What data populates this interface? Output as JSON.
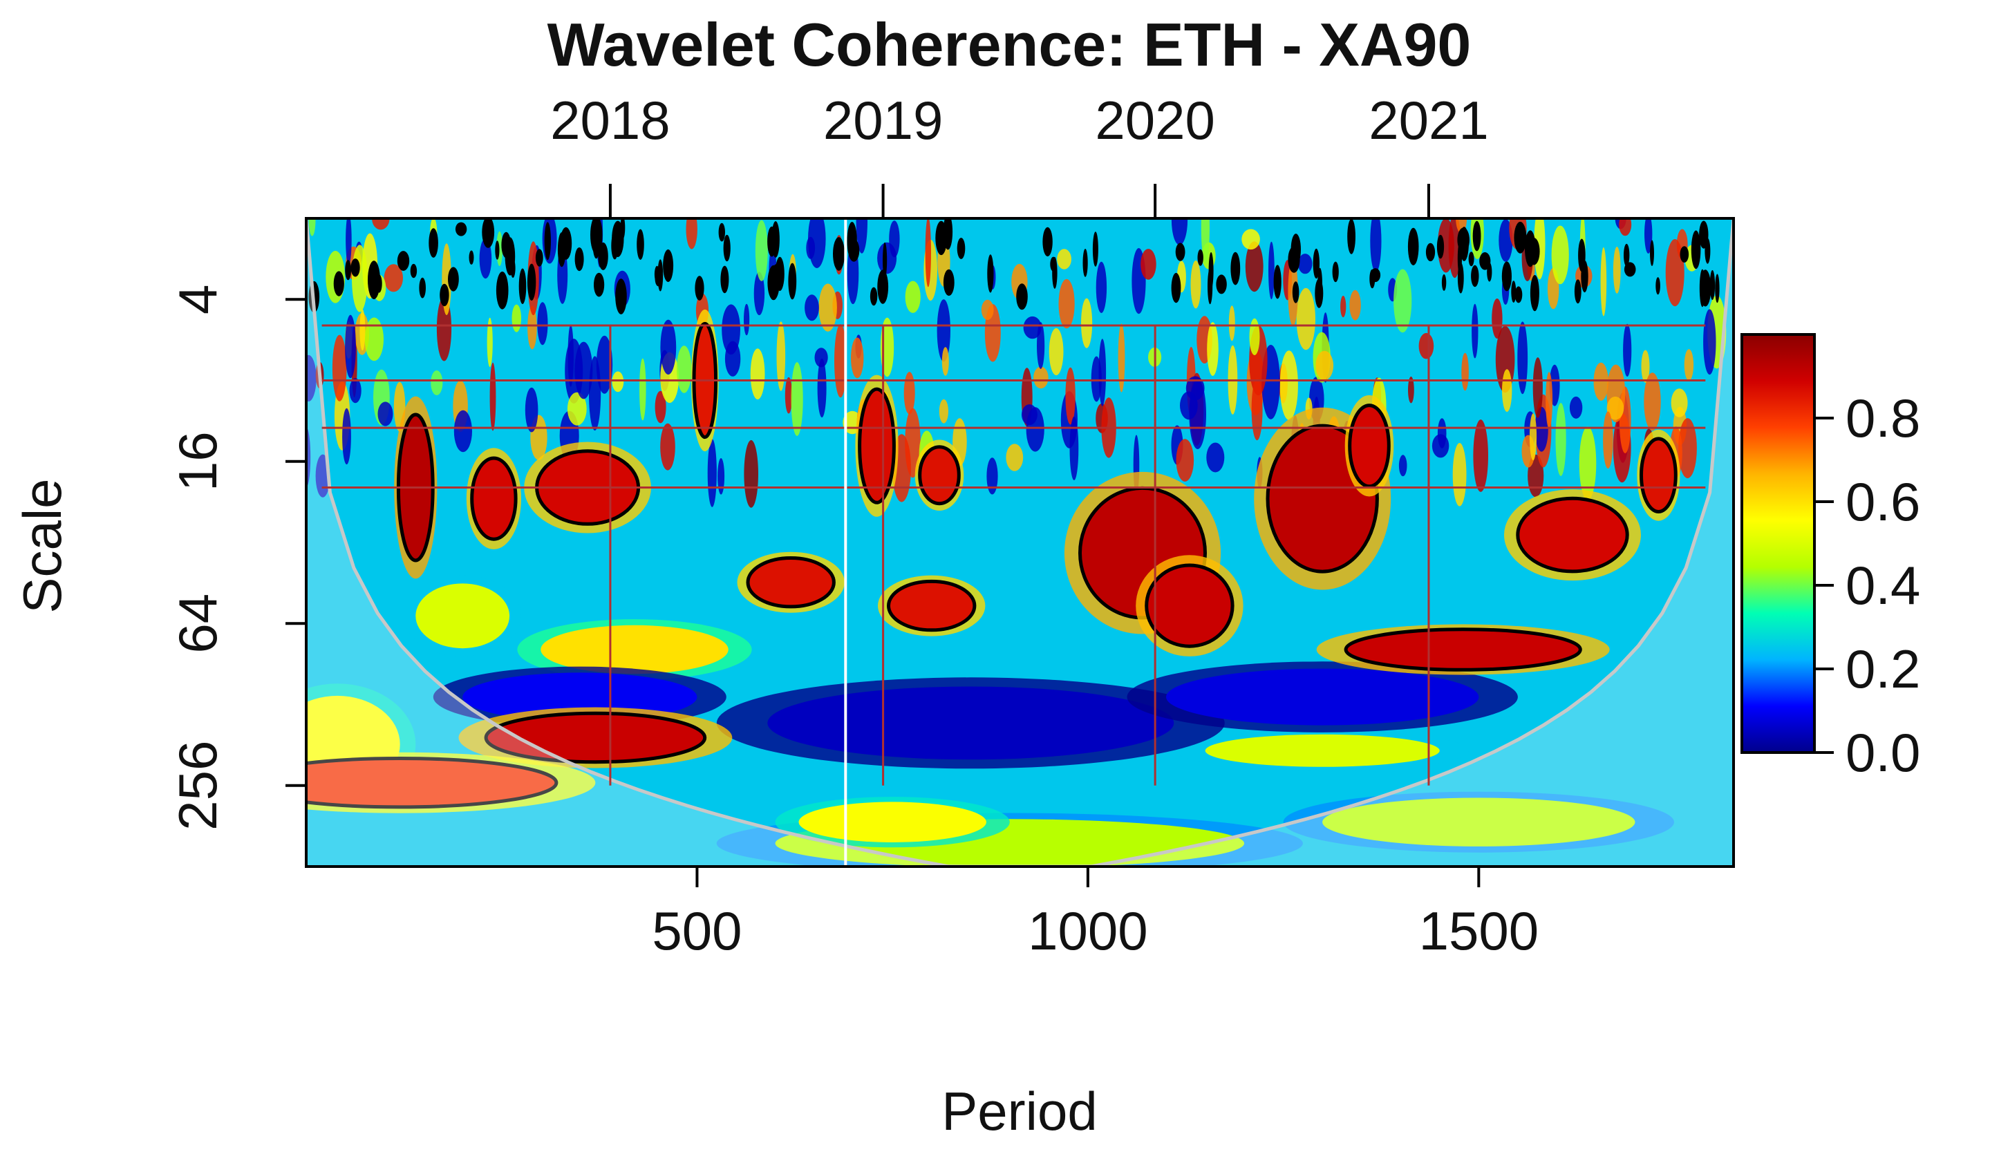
{
  "chart_data": {
    "type": "heatmap",
    "title": "Wavelet Coherence: ETH - XA90",
    "xlabel": "Period",
    "ylabel": "Scale",
    "x_range": [
      0,
      1826
    ],
    "y_scale": "log2",
    "y_range": [
      2,
      512
    ],
    "x_ticks": [
      {
        "value": 500,
        "label": "500"
      },
      {
        "value": 1000,
        "label": "1000"
      },
      {
        "value": 1500,
        "label": "1500"
      }
    ],
    "y_ticks": [
      {
        "value": 4,
        "label": "4"
      },
      {
        "value": 16,
        "label": "16"
      },
      {
        "value": 64,
        "label": "64"
      },
      {
        "value": 256,
        "label": "256"
      }
    ],
    "top_axis": {
      "ticks": [
        {
          "value": 389,
          "label": "2018"
        },
        {
          "value": 738,
          "label": "2019"
        },
        {
          "value": 1086,
          "label": "2020"
        },
        {
          "value": 1436,
          "label": "2021"
        }
      ]
    },
    "colorbar": {
      "range": [
        0,
        1
      ],
      "ticks": [
        {
          "value": 0.0,
          "label": "0.0"
        },
        {
          "value": 0.2,
          "label": "0.2"
        },
        {
          "value": 0.4,
          "label": "0.4"
        },
        {
          "value": 0.6,
          "label": "0.6"
        },
        {
          "value": 0.8,
          "label": "0.8"
        }
      ],
      "palette": [
        "#00008b",
        "#0000ff",
        "#00b4ff",
        "#00ffb4",
        "#b4ff00",
        "#ffff00",
        "#ffb400",
        "#ff4000",
        "#d00000",
        "#8b0000"
      ]
    },
    "background_level": 0.25,
    "reference_line_x": 690,
    "guide_scales": [
      5,
      8,
      12,
      20
    ],
    "significant_regions": [
      {
        "x": 140,
        "scale": 20,
        "rx": 22,
        "ry_oct": 0.9,
        "level": 0.93
      },
      {
        "x": 240,
        "scale": 22,
        "rx": 28,
        "ry_oct": 0.5,
        "level": 0.88
      },
      {
        "x": 360,
        "scale": 20,
        "rx": 65,
        "ry_oct": 0.45,
        "level": 0.88
      },
      {
        "x": 510,
        "scale": 8,
        "rx": 14,
        "ry_oct": 0.7,
        "level": 0.85
      },
      {
        "x": 620,
        "scale": 45,
        "rx": 55,
        "ry_oct": 0.3,
        "level": 0.86
      },
      {
        "x": 730,
        "scale": 14,
        "rx": 22,
        "ry_oct": 0.7,
        "level": 0.87
      },
      {
        "x": 810,
        "scale": 18,
        "rx": 25,
        "ry_oct": 0.35,
        "level": 0.86
      },
      {
        "x": 800,
        "scale": 55,
        "rx": 55,
        "ry_oct": 0.3,
        "level": 0.86
      },
      {
        "x": 1070,
        "scale": 35,
        "rx": 80,
        "ry_oct": 0.8,
        "level": 0.92
      },
      {
        "x": 1130,
        "scale": 55,
        "rx": 55,
        "ry_oct": 0.5,
        "level": 0.9
      },
      {
        "x": 1300,
        "scale": 22,
        "rx": 70,
        "ry_oct": 0.9,
        "level": 0.92
      },
      {
        "x": 1360,
        "scale": 14,
        "rx": 25,
        "ry_oct": 0.5,
        "level": 0.88
      },
      {
        "x": 1480,
        "scale": 80,
        "rx": 150,
        "ry_oct": 0.25,
        "level": 0.9
      },
      {
        "x": 1620,
        "scale": 30,
        "rx": 70,
        "ry_oct": 0.45,
        "level": 0.88
      },
      {
        "x": 1730,
        "scale": 18,
        "rx": 22,
        "ry_oct": 0.45,
        "level": 0.86
      },
      {
        "x": 370,
        "scale": 170,
        "rx": 140,
        "ry_oct": 0.3,
        "level": 0.9
      },
      {
        "x": 120,
        "scale": 250,
        "rx": 200,
        "ry_oct": 0.3,
        "level": 0.8
      }
    ],
    "moderate_regions": [
      {
        "x": 420,
        "scale": 80,
        "rx": 120,
        "ry_oct": 0.3,
        "level": 0.6
      },
      {
        "x": 200,
        "scale": 60,
        "rx": 60,
        "ry_oct": 0.4,
        "level": 0.5
      },
      {
        "x": 900,
        "scale": 420,
        "rx": 300,
        "ry_oct": 0.3,
        "level": 0.45
      },
      {
        "x": 1500,
        "scale": 350,
        "rx": 200,
        "ry_oct": 0.3,
        "level": 0.45
      },
      {
        "x": 750,
        "scale": 350,
        "rx": 120,
        "ry_oct": 0.25,
        "level": 0.55
      },
      {
        "x": 1300,
        "scale": 190,
        "rx": 150,
        "ry_oct": 0.2,
        "level": 0.5
      },
      {
        "x": 40,
        "scale": 180,
        "rx": 80,
        "ry_oct": 0.6,
        "level": 0.55
      }
    ],
    "low_regions": [
      {
        "x": 850,
        "scale": 150,
        "rx": 260,
        "ry_oct": 0.45,
        "level": 0.05
      },
      {
        "x": 1300,
        "scale": 120,
        "rx": 200,
        "ry_oct": 0.35,
        "level": 0.08
      },
      {
        "x": 350,
        "scale": 120,
        "rx": 150,
        "ry_oct": 0.3,
        "level": 0.1
      }
    ]
  }
}
